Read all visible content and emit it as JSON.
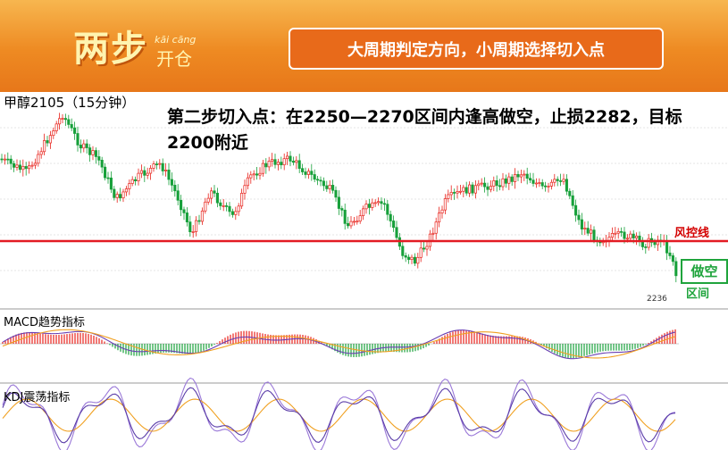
{
  "header": {
    "logo_text": "两步",
    "logo_pinyin": "kāi cāng",
    "logo_sub": "开仓",
    "banner": "大周期判定方向，小周期选择切入点"
  },
  "chart_data": {
    "type": "candlestick",
    "title": "甲醇2105（15分钟）",
    "annotation": "第二步切入点：在2250—2270区间内逢高做空，止损2282，目标2200附近",
    "risk_line_label": "风控线",
    "short_zone_label": "做空",
    "short_zone_sub": "区间",
    "last_price_label": "2236",
    "panels": [
      "MACD趋势指标",
      "KDJ震荡指标"
    ],
    "colors": {
      "up": "#e8221b",
      "down": "#17a03a",
      "risk_line": "#e31b23",
      "macd_line1": "#6a3fb3",
      "macd_line2": "#f0a020",
      "kdj_k": "#5a3ca8",
      "kdj_d": "#f0a020",
      "kdj_j": "#9a78d8"
    }
  }
}
